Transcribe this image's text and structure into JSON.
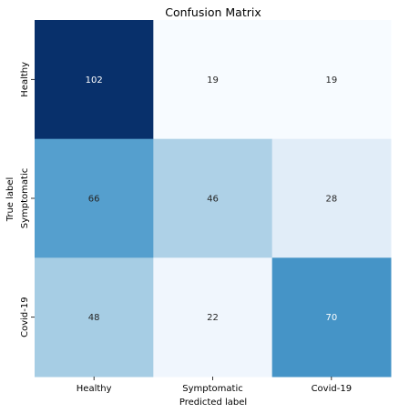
{
  "chart_data": {
    "type": "heatmap",
    "title": "Confusion Matrix",
    "xlabel": "Predicted label",
    "ylabel": "True label",
    "x_categories": [
      "Healthy",
      "Symptomatic",
      "Covid-19"
    ],
    "y_categories": [
      "Healthy",
      "Symptomatic",
      "Covid-19"
    ],
    "values": [
      [
        102,
        19,
        19
      ],
      [
        66,
        46,
        28
      ],
      [
        48,
        22,
        70
      ]
    ],
    "colormap": "Blues",
    "color_range": [
      19,
      102
    ],
    "colorbar": false
  }
}
